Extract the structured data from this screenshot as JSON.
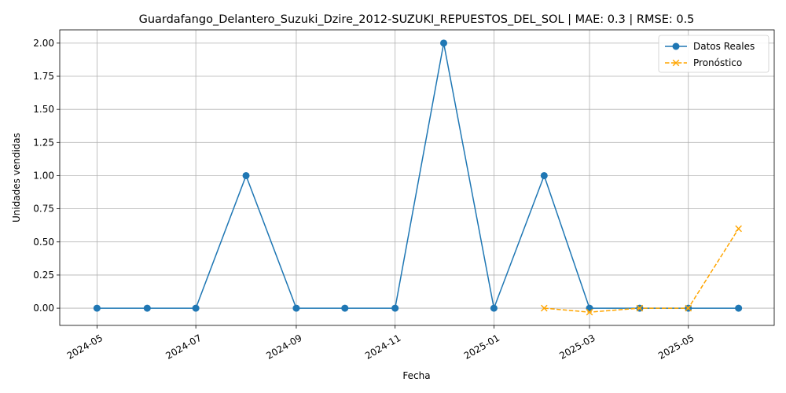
{
  "chart_data": {
    "type": "line",
    "title": "Guardafango_Delantero_Suzuki_Dzire_2012-SUZUKI_REPUESTOS_DEL_SOL | MAE: 0.3 | RMSE: 0.5",
    "xlabel": "Fecha",
    "ylabel": "Unidades vendidas",
    "x_axis_type": "date",
    "xlim": [
      "2024-04-08",
      "2025-06-23"
    ],
    "ylim": [
      -0.13,
      2.1
    ],
    "x_ticks": [
      "2024-05-01",
      "2024-07-01",
      "2024-09-01",
      "2024-11-01",
      "2025-01-01",
      "2025-03-01",
      "2025-05-01"
    ],
    "x_tick_labels": [
      "2024-05",
      "2024-07",
      "2024-09",
      "2024-11",
      "2025-01",
      "2025-03",
      "2025-05"
    ],
    "y_ticks": [
      0.0,
      0.25,
      0.5,
      0.75,
      1.0,
      1.25,
      1.5,
      1.75,
      2.0
    ],
    "y_tick_labels": [
      "0.00",
      "0.25",
      "0.50",
      "0.75",
      "1.00",
      "1.25",
      "1.50",
      "1.75",
      "2.00"
    ],
    "grid": true,
    "legend_position": "top-right",
    "series": [
      {
        "name": "Datos Reales",
        "color": "#1f77b4",
        "style": "solid",
        "marker": "circle",
        "x": [
          "2024-05-01",
          "2024-06-01",
          "2024-07-01",
          "2024-08-01",
          "2024-09-01",
          "2024-10-01",
          "2024-11-01",
          "2024-12-01",
          "2025-01-01",
          "2025-02-01",
          "2025-03-01",
          "2025-04-01",
          "2025-05-01",
          "2025-06-01"
        ],
        "values": [
          0,
          0,
          0,
          1,
          0,
          0,
          0,
          2,
          0,
          1,
          0,
          0,
          0,
          0
        ]
      },
      {
        "name": "Pronóstico",
        "color": "#ffa500",
        "style": "dashed",
        "marker": "x",
        "x": [
          "2025-02-01",
          "2025-03-01",
          "2025-04-01",
          "2025-05-01",
          "2025-06-01"
        ],
        "values": [
          0.0,
          -0.03,
          0.0,
          0.0,
          0.6
        ]
      }
    ]
  }
}
